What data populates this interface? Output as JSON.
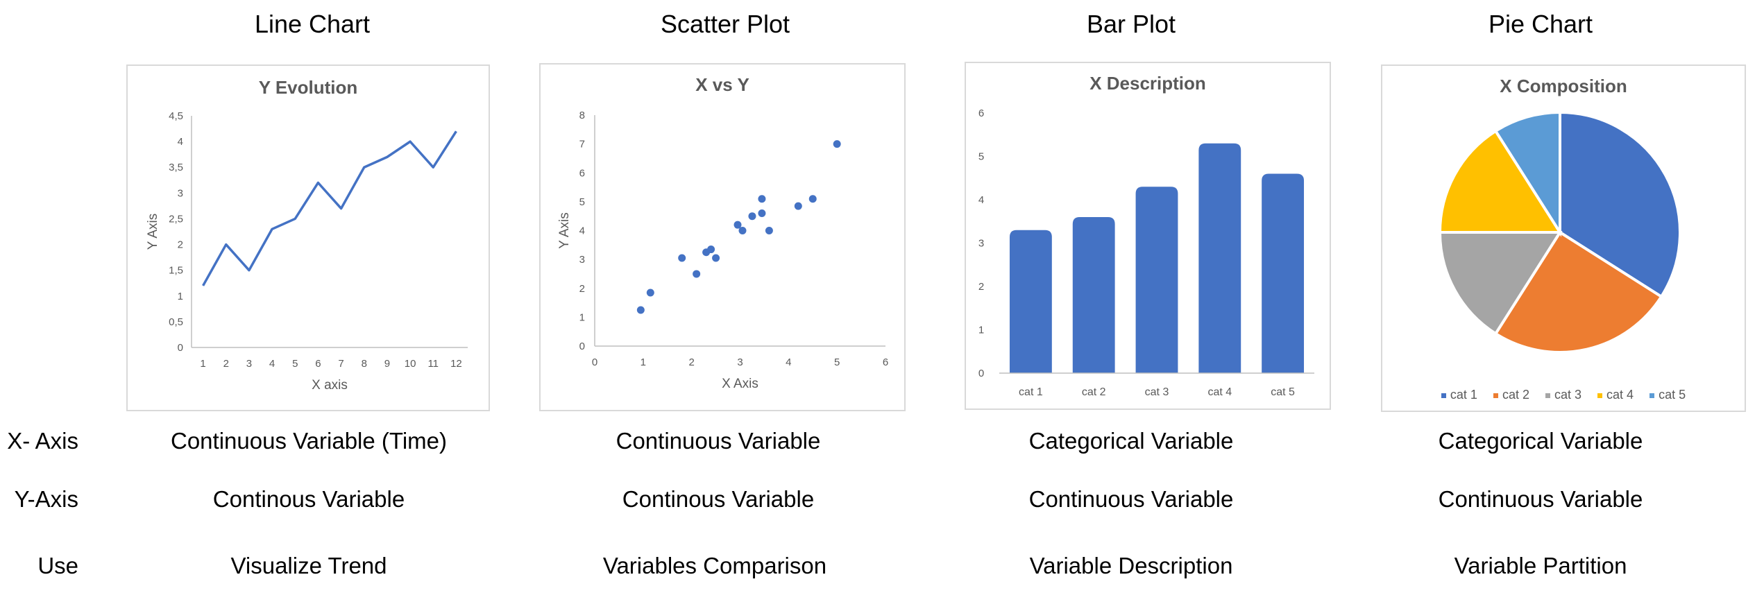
{
  "columns": [
    {
      "title": "Line Chart",
      "x_axis": "Continuous Variable (Time)",
      "y_axis": "Continous Variable",
      "use": "Visualize Trend"
    },
    {
      "title": "Scatter Plot",
      "x_axis": "Continuous Variable",
      "y_axis": "Continous Variable",
      "use": "Variables Comparison"
    },
    {
      "title": "Bar Plot",
      "x_axis": "Categorical Variable",
      "y_axis": "Continuous Variable",
      "use": "Variable Description"
    },
    {
      "title": "Pie Chart",
      "x_axis": "Categorical Variable",
      "y_axis": "Continuous Variable",
      "use": "Variable Partition"
    }
  ],
  "row_labels": {
    "x_axis": "X- Axis",
    "y_axis": "Y-Axis",
    "use": "Use"
  },
  "chart_data": [
    {
      "type": "line",
      "title": "Y Evolution",
      "xlabel": "X axis",
      "ylabel": "Y Axis",
      "x": [
        1,
        2,
        3,
        4,
        5,
        6,
        7,
        8,
        9,
        10,
        11,
        12
      ],
      "y": [
        1.2,
        2.0,
        1.5,
        2.3,
        2.5,
        3.2,
        2.7,
        3.5,
        3.7,
        4.0,
        3.5,
        4.2
      ],
      "ylim": [
        0,
        4.5
      ],
      "y_ticks": [
        "0",
        "0,5",
        "1",
        "1,5",
        "2",
        "2,5",
        "3",
        "3,5",
        "4",
        "4,5"
      ],
      "grid": false,
      "color": "#4472c4"
    },
    {
      "type": "scatter",
      "title": "X vs Y",
      "xlabel": "X Axis",
      "ylabel": "Y Axis",
      "points": [
        {
          "x": 0.95,
          "y": 1.25
        },
        {
          "x": 1.15,
          "y": 1.85
        },
        {
          "x": 1.8,
          "y": 3.05
        },
        {
          "x": 2.1,
          "y": 2.5
        },
        {
          "x": 2.3,
          "y": 3.25
        },
        {
          "x": 2.4,
          "y": 3.35
        },
        {
          "x": 2.5,
          "y": 3.05
        },
        {
          "x": 2.95,
          "y": 4.2
        },
        {
          "x": 3.05,
          "y": 4.0
        },
        {
          "x": 3.25,
          "y": 4.5
        },
        {
          "x": 3.45,
          "y": 4.6
        },
        {
          "x": 3.45,
          "y": 5.1
        },
        {
          "x": 3.6,
          "y": 4.0
        },
        {
          "x": 4.2,
          "y": 4.85
        },
        {
          "x": 4.5,
          "y": 5.1
        },
        {
          "x": 5.0,
          "y": 7.0
        }
      ],
      "xlim": [
        0,
        6
      ],
      "ylim": [
        0,
        8
      ],
      "x_ticks": [
        "0",
        "1",
        "2",
        "3",
        "4",
        "5",
        "6"
      ],
      "y_ticks": [
        "0",
        "1",
        "2",
        "3",
        "4",
        "5",
        "6",
        "7",
        "8"
      ],
      "grid": false,
      "color": "#4472c4"
    },
    {
      "type": "bar",
      "title": "X Description",
      "categories": [
        "cat 1",
        "cat 2",
        "cat 3",
        "cat 4",
        "cat 5"
      ],
      "values": [
        3.3,
        3.6,
        4.3,
        5.3,
        4.6
      ],
      "ylim": [
        0,
        6
      ],
      "y_ticks": [
        "0",
        "1",
        "2",
        "3",
        "4",
        "5",
        "6"
      ],
      "grid": false,
      "color": "#4472c4"
    },
    {
      "type": "pie",
      "title": "X Composition",
      "categories": [
        "cat 1",
        "cat 2",
        "cat 3",
        "cat 4",
        "cat 5"
      ],
      "values": [
        34,
        25,
        16,
        16,
        9
      ],
      "colors": [
        "#4472c4",
        "#ed7d31",
        "#a5a5a5",
        "#ffc000",
        "#5b9bd5"
      ],
      "legend": "bottom"
    }
  ]
}
